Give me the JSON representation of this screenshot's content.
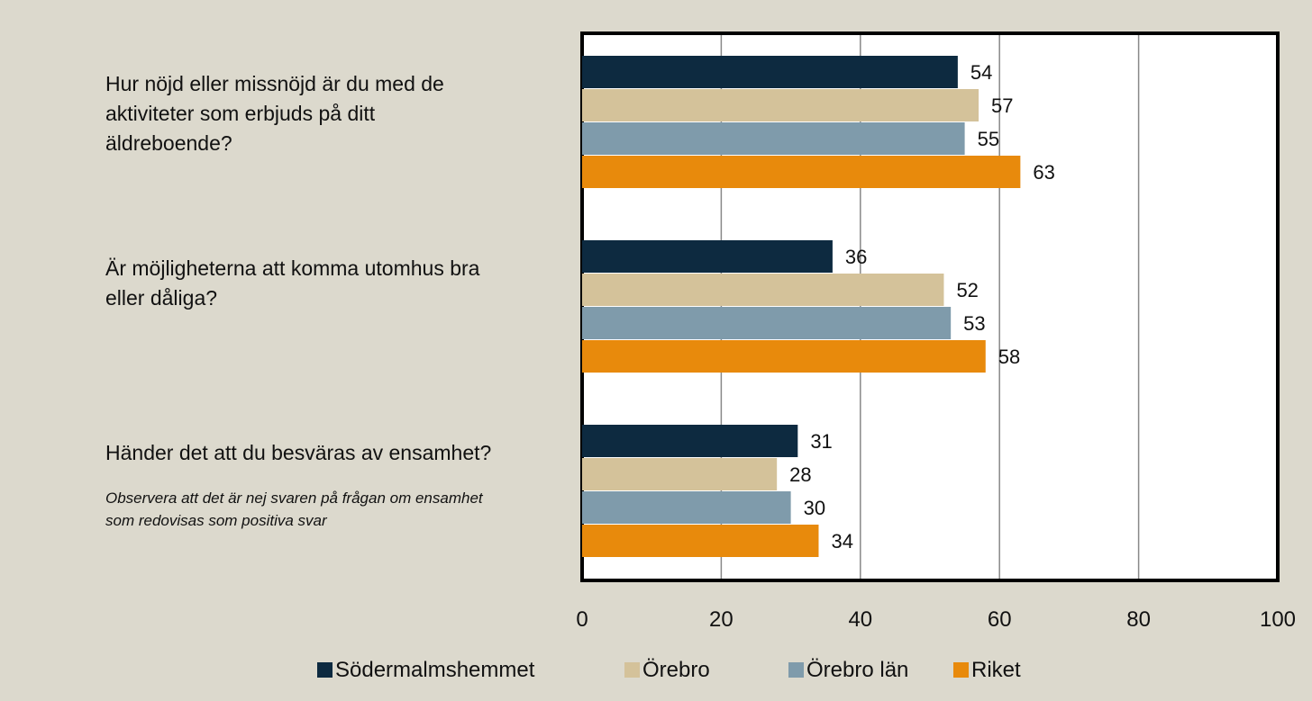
{
  "chart_data": {
    "type": "bar",
    "orientation": "horizontal",
    "categories": [
      "Hur nöjd eller missnöjd är du med de\naktiviteter som erbjuds på ditt\näldreboende?",
      "Är möjligheterna att komma utomhus bra\neller dåliga?",
      "Händer det att du besväras av ensamhet?"
    ],
    "annotation": "Observera att det är nej svaren på frågan om ensamhet\nsom redovisas som positiva svar",
    "series": [
      {
        "name": "Södermalmshemmet",
        "color": "#0d2a40",
        "values": [
          54,
          36,
          31
        ]
      },
      {
        "name": "Örebro",
        "color": "#d4c29a",
        "values": [
          57,
          52,
          28
        ]
      },
      {
        "name": "Örebro län",
        "color": "#7f9bab",
        "values": [
          55,
          53,
          30
        ]
      },
      {
        "name": "Riket",
        "color": "#e88a0c",
        "values": [
          63,
          58,
          34
        ]
      }
    ],
    "xlim": [
      0,
      100
    ],
    "xticks": [
      0,
      20,
      40,
      60,
      80,
      100
    ],
    "grid": true,
    "legend": "bottom"
  }
}
